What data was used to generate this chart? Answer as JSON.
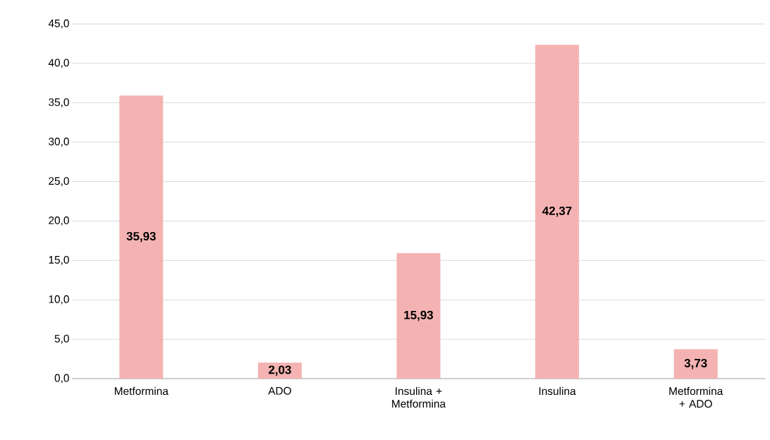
{
  "chart_data": {
    "type": "bar",
    "categories": [
      "Metformina",
      "ADO",
      "Insulina + Metformina",
      "Insulina",
      "Metformina + ADO"
    ],
    "values": [
      35.93,
      2.03,
      15.93,
      42.37,
      3.73
    ],
    "value_labels": [
      "35,93",
      "2,03",
      "15,93",
      "42,37",
      "3,73"
    ],
    "color": "#f4b3b2",
    "ylim": [
      0,
      45
    ],
    "yticks": [
      {
        "value": 0,
        "label": "0,0"
      },
      {
        "value": 5,
        "label": "5,0"
      },
      {
        "value": 10,
        "label": "10,0"
      },
      {
        "value": 15,
        "label": "15,0"
      },
      {
        "value": 20,
        "label": "20,0"
      },
      {
        "value": 25,
        "label": "25,0"
      },
      {
        "value": 30,
        "label": "30,0"
      },
      {
        "value": 35,
        "label": "35,0"
      },
      {
        "value": 40,
        "label": "40,0"
      },
      {
        "value": 45,
        "label": "45,0"
      }
    ],
    "grid": "y"
  }
}
